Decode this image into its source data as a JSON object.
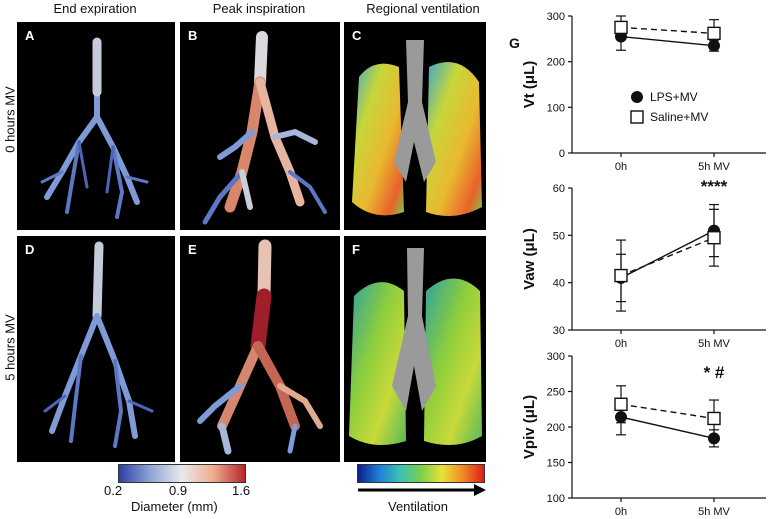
{
  "columns": [
    "End expiration",
    "Peak inspiration",
    "Regional ventilation"
  ],
  "rows": [
    "0 hours MV",
    "5 hours MV"
  ],
  "panels": [
    "A",
    "B",
    "C",
    "D",
    "E",
    "F"
  ],
  "colorbar_diameter": {
    "ticks": [
      "0.2",
      "0.9",
      "1.6"
    ],
    "label": "Diameter (mm)",
    "colors": [
      "#2c3fa6",
      "#8fa5d8",
      "#e9e9ec",
      "#eeab8f",
      "#b8242a"
    ]
  },
  "colorbar_ventilation": {
    "label": "Ventilation",
    "colors": [
      "#0b1f8a",
      "#1e7fd6",
      "#39c1b5",
      "#7bd04a",
      "#e8e23a",
      "#f08a22",
      "#e21b1b"
    ]
  },
  "figure_letter": "G",
  "legend": [
    "LPS+MV",
    "Saline+MV"
  ],
  "chart_data": [
    {
      "type": "line",
      "ylabel": "Vt (μL)",
      "ylim": [
        0,
        300
      ],
      "yticks": [
        0,
        100,
        200,
        300
      ],
      "categories": [
        "0h",
        "5h MV"
      ],
      "series": [
        {
          "name": "LPS+MV",
          "values": [
            255,
            235
          ],
          "err": [
            30,
            12
          ]
        },
        {
          "name": "Saline+MV",
          "values": [
            275,
            262
          ],
          "err": [
            25,
            30
          ]
        }
      ],
      "annotation": ""
    },
    {
      "type": "line",
      "ylabel": "Vaw (μL)",
      "ylim": [
        30,
        60
      ],
      "yticks": [
        30,
        40,
        50,
        60
      ],
      "categories": [
        "0h",
        "5h MV"
      ],
      "series": [
        {
          "name": "LPS+MV",
          "values": [
            41,
            51
          ],
          "err": [
            5,
            5.5
          ]
        },
        {
          "name": "Saline+MV",
          "values": [
            41.5,
            49.5
          ],
          "err": [
            7.5,
            6
          ]
        }
      ],
      "annotation": "****"
    },
    {
      "type": "line",
      "ylabel": "Vpiv (μL)",
      "ylim": [
        100,
        300
      ],
      "yticks": [
        100,
        150,
        200,
        250,
        300
      ],
      "categories": [
        "0h",
        "5h MV"
      ],
      "series": [
        {
          "name": "LPS+MV",
          "values": [
            214,
            184
          ],
          "err": [
            25,
            12
          ]
        },
        {
          "name": "Saline+MV",
          "values": [
            232,
            212
          ],
          "err": [
            26,
            26
          ]
        }
      ],
      "annotation": "* #"
    }
  ]
}
